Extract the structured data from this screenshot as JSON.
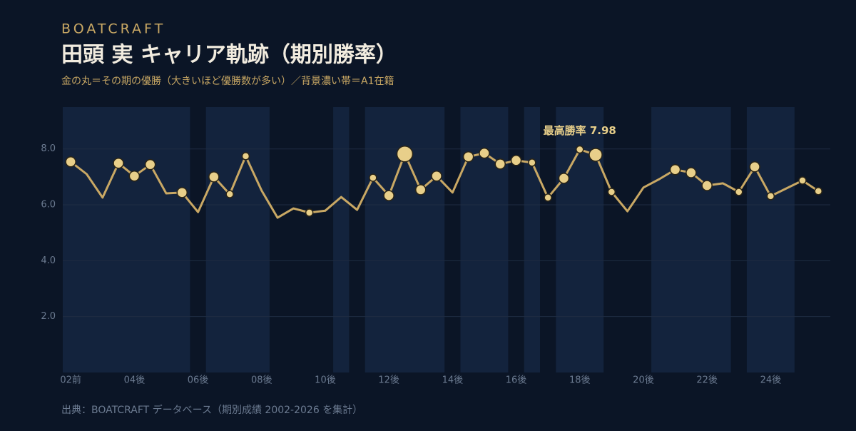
{
  "chart_data": {
    "type": "line",
    "brand": "BOATCRAFT",
    "title": "田頭 実 キャリア軌跡（期別勝率）",
    "subtitle": "金の丸＝その期の優勝（大きいほど優勝数が多い）／背景濃い帯＝A1在籍",
    "annotation": "最高勝率 7.98",
    "source": "出典：BOATCRAFT データベース（期別成績 2002-2026 を集計）",
    "categories": [
      "02前",
      null,
      null,
      null,
      "04後",
      null,
      null,
      null,
      "06後",
      null,
      null,
      null,
      "08後",
      null,
      null,
      null,
      "10後",
      null,
      null,
      null,
      "12後",
      null,
      null,
      null,
      "14後",
      null,
      null,
      null,
      "16後",
      null,
      null,
      null,
      "18後",
      null,
      null,
      null,
      "20後",
      null,
      null,
      null,
      "22後",
      null,
      null,
      null,
      "24後",
      null,
      null,
      null
    ],
    "values": [
      7.54,
      7.1,
      6.26,
      7.49,
      7.03,
      7.44,
      6.41,
      6.44,
      5.74,
      7.0,
      6.38,
      7.74,
      6.51,
      5.54,
      5.87,
      5.72,
      5.79,
      6.28,
      5.82,
      6.97,
      6.33,
      7.82,
      6.54,
      7.03,
      6.44,
      7.72,
      7.85,
      7.46,
      7.59,
      7.51,
      6.26,
      6.95,
      7.98,
      7.79,
      6.46,
      5.77,
      6.62,
      6.92,
      7.26,
      7.15,
      6.69,
      6.77,
      6.46,
      7.36,
      6.31,
      6.59,
      6.87,
      6.49
    ],
    "wins": [
      2,
      0,
      0,
      2,
      2,
      2,
      0,
      2,
      0,
      2,
      1,
      1,
      0,
      0,
      0,
      1,
      0,
      0,
      0,
      1,
      2,
      4,
      2,
      2,
      0,
      2,
      2,
      2,
      2,
      1,
      1,
      2,
      1,
      3,
      1,
      0,
      0,
      0,
      2,
      2,
      2,
      0,
      1,
      2,
      1,
      0,
      1,
      1
    ],
    "a1": [
      true,
      true,
      true,
      true,
      true,
      true,
      true,
      true,
      false,
      true,
      true,
      true,
      true,
      false,
      false,
      false,
      false,
      true,
      false,
      true,
      true,
      true,
      true,
      true,
      false,
      true,
      true,
      true,
      false,
      true,
      false,
      true,
      true,
      true,
      false,
      false,
      false,
      true,
      true,
      true,
      true,
      true,
      false,
      true,
      true,
      true,
      false,
      false
    ],
    "color": "#c9a864",
    "marker_color": "#e8cf8a",
    "band_color": "#13233d",
    "ylim": [
      0,
      9.5
    ],
    "yticks": [
      {
        "value": 2,
        "label": "2.0"
      },
      {
        "value": 4,
        "label": "4.0"
      },
      {
        "value": 6,
        "label": "6.0"
      },
      {
        "value": 8,
        "label": "8.0"
      }
    ],
    "grid": true
  }
}
